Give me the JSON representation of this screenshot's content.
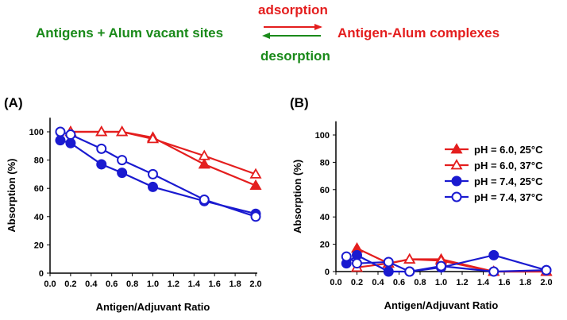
{
  "scheme": {
    "left": "Antigens + Alum vacant sites",
    "right": "Antigen-Alum complexes",
    "forward": "adsorption",
    "reverse": "desorption",
    "green": "#1a8a1a",
    "red": "#e41e1e"
  },
  "colors": {
    "red": "#e41e1e",
    "blue": "#1a1ad0"
  },
  "chart_data": [
    {
      "type": "line",
      "panel": "(A)",
      "xlabel": "Antigen/Adjuvant Ratio",
      "ylabel": "Absorption (%)",
      "xlim": [
        0,
        2
      ],
      "ylim": [
        0,
        110
      ],
      "xticks": [
        "0.0",
        "0.2",
        "0.4",
        "0.6",
        "0.8",
        "1.0",
        "1.2",
        "1.4",
        "1.6",
        "1.8",
        "2.0"
      ],
      "yticks": [
        "0",
        "20",
        "40",
        "60",
        "80",
        "100"
      ],
      "series": [
        {
          "name": "pH = 6.0, 25°C",
          "color": "red",
          "marker": "triangle-filled",
          "x": [
            0.2,
            0.5,
            0.7,
            1.0,
            1.5,
            2.0
          ],
          "y": [
            100,
            100,
            100,
            96,
            77,
            62
          ]
        },
        {
          "name": "pH = 6.0, 37°C",
          "color": "red",
          "marker": "triangle-open",
          "x": [
            0.2,
            0.5,
            0.7,
            1.0,
            1.5,
            2.0
          ],
          "y": [
            100,
            100,
            100,
            95,
            83,
            70
          ]
        },
        {
          "name": "pH = 7.4, 25°C",
          "color": "blue",
          "marker": "circle-filled",
          "x": [
            0.1,
            0.2,
            0.5,
            0.7,
            1.0,
            1.5,
            2.0
          ],
          "y": [
            94,
            92,
            77,
            71,
            61,
            51,
            42
          ]
        },
        {
          "name": "pH = 7.4, 37°C",
          "color": "blue",
          "marker": "circle-open",
          "x": [
            0.1,
            0.2,
            0.5,
            0.7,
            1.0,
            1.5,
            2.0
          ],
          "y": [
            100,
            98,
            88,
            80,
            70,
            52,
            40
          ]
        }
      ]
    },
    {
      "type": "line",
      "panel": "(B)",
      "xlabel": "Antigen/Adjuvant Ratio",
      "ylabel": "Absorption (%)",
      "xlim": [
        0,
        2
      ],
      "ylim": [
        0,
        110
      ],
      "legend": "top-right",
      "xticks": [
        "0.0",
        "0.2",
        "0.4",
        "0.6",
        "0.8",
        "1.0",
        "1.2",
        "1.4",
        "1.6",
        "1.8",
        "2.0"
      ],
      "yticks": [
        "0",
        "20",
        "40",
        "60",
        "80",
        "100"
      ],
      "series": [
        {
          "name": "pH = 6.0, 25°C",
          "color": "red",
          "marker": "triangle-filled",
          "x": [
            0.2,
            0.5,
            0.7,
            1.0,
            1.5,
            2.0
          ],
          "y": [
            17,
            6,
            9,
            9,
            0,
            0
          ]
        },
        {
          "name": "pH = 6.0, 37°C",
          "color": "red",
          "marker": "triangle-open",
          "x": [
            0.2,
            0.5,
            0.7,
            1.0,
            1.5,
            2.0
          ],
          "y": [
            3,
            6,
            9,
            8,
            0,
            0
          ]
        },
        {
          "name": "pH = 7.4, 25°C",
          "color": "blue",
          "marker": "circle-filled",
          "x": [
            0.1,
            0.2,
            0.5,
            0.7,
            1.0,
            1.5,
            2.0
          ],
          "y": [
            6,
            12,
            0,
            0,
            3,
            12,
            1
          ]
        },
        {
          "name": "pH = 7.4, 37°C",
          "color": "blue",
          "marker": "circle-open",
          "x": [
            0.1,
            0.2,
            0.5,
            0.7,
            1.0,
            1.5,
            2.0
          ],
          "y": [
            11,
            6,
            7,
            0,
            4,
            0,
            1
          ]
        }
      ]
    }
  ]
}
